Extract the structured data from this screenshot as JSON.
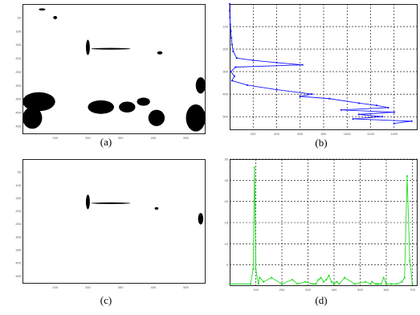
{
  "captions": [
    "(a)",
    "(b)",
    "(c)",
    "(d)"
  ],
  "colors": {
    "blue_series": "#1a1aff",
    "green_series": "#22dd22",
    "mask": "#000000",
    "grid": "#000000"
  },
  "chart_data": [
    {
      "panel": "a",
      "type": "heatmap",
      "description_visible": "binary image",
      "x_ticks": [
        "100",
        "200",
        "300",
        "400",
        "500"
      ],
      "y_ticks": [
        "50",
        "100",
        "150",
        "200",
        "250",
        "300",
        "350",
        "400",
        "450"
      ],
      "xlim": [
        0,
        560
      ],
      "ylim": [
        0,
        480
      ],
      "blobs": [
        {
          "cx": 200,
          "cy": 160,
          "rx": 6,
          "ry": 28
        },
        {
          "cx": 270,
          "cy": 165,
          "rx": 60,
          "ry": 3
        },
        {
          "cx": 420,
          "cy": 180,
          "rx": 8,
          "ry": 6
        },
        {
          "cx": 50,
          "cy": 360,
          "rx": 50,
          "ry": 35
        },
        {
          "cx": 30,
          "cy": 420,
          "rx": 30,
          "ry": 40
        },
        {
          "cx": 240,
          "cy": 380,
          "rx": 40,
          "ry": 25
        },
        {
          "cx": 320,
          "cy": 380,
          "rx": 25,
          "ry": 20
        },
        {
          "cx": 370,
          "cy": 360,
          "rx": 20,
          "ry": 15
        },
        {
          "cx": 410,
          "cy": 420,
          "rx": 25,
          "ry": 30
        },
        {
          "cx": 530,
          "cy": 420,
          "rx": 30,
          "ry": 50
        },
        {
          "cx": 545,
          "cy": 300,
          "rx": 15,
          "ry": 30
        },
        {
          "cx": 100,
          "cy": 50,
          "rx": 6,
          "ry": 6
        },
        {
          "cx": 60,
          "cy": 20,
          "rx": 10,
          "ry": 4
        }
      ]
    },
    {
      "panel": "b",
      "type": "line",
      "x": [
        0,
        0,
        2,
        5,
        10,
        15,
        20,
        30,
        60,
        200,
        400,
        620,
        50,
        10,
        40,
        20,
        150,
        400,
        700,
        600,
        850,
        1100,
        1250,
        1350,
        950,
        1400,
        1100,
        1300,
        1050,
        1550,
        1400
      ],
      "y": [
        0,
        30,
        60,
        90,
        120,
        150,
        180,
        210,
        240,
        250,
        260,
        270,
        280,
        300,
        320,
        340,
        360,
        380,
        400,
        410,
        420,
        440,
        450,
        460,
        470,
        480,
        490,
        500,
        510,
        520,
        530
      ],
      "xlim": [
        0,
        1600
      ],
      "ylim": [
        0,
        560
      ],
      "x_ticks": [
        "200",
        "400",
        "600",
        "800",
        "1000",
        "1200",
        "1400"
      ],
      "y_ticks": [
        "100",
        "200",
        "300",
        "400",
        "500"
      ],
      "grid": true
    },
    {
      "panel": "c",
      "type": "heatmap",
      "description_visible": "binary image",
      "x_ticks": [
        "100",
        "200",
        "300",
        "400",
        "500"
      ],
      "y_ticks": [
        "50",
        "100",
        "150",
        "200",
        "250",
        "300",
        "350",
        "400",
        "450"
      ],
      "xlim": [
        0,
        560
      ],
      "ylim": [
        0,
        480
      ],
      "blobs": [
        {
          "cx": 200,
          "cy": 165,
          "rx": 6,
          "ry": 28
        },
        {
          "cx": 270,
          "cy": 170,
          "rx": 60,
          "ry": 3
        },
        {
          "cx": 410,
          "cy": 190,
          "rx": 6,
          "ry": 5
        },
        {
          "cx": 545,
          "cy": 230,
          "rx": 8,
          "ry": 22
        }
      ]
    },
    {
      "panel": "d",
      "type": "line",
      "x": [
        0,
        80,
        90,
        95,
        100,
        110,
        115,
        130,
        160,
        200,
        240,
        260,
        290,
        320,
        330,
        340,
        350,
        360,
        370,
        380,
        390,
        400,
        410,
        420,
        440,
        480,
        520,
        540,
        545,
        560,
        565,
        570,
        580,
        590,
        600,
        620,
        640,
        660,
        670,
        680,
        690,
        700
      ],
      "y": [
        0.5,
        0.5,
        4,
        28,
        4,
        0.5,
        2,
        1,
        2,
        0.5,
        1.5,
        0.5,
        1,
        0.5,
        0.5,
        1.5,
        2,
        1,
        1.5,
        2.5,
        1,
        0.5,
        1,
        0.5,
        2,
        0.5,
        1,
        0.5,
        1,
        0.5,
        0.5,
        0.5,
        0.5,
        2,
        0.5,
        0.5,
        0.5,
        1,
        2,
        26,
        6,
        0.5
      ],
      "xlim": [
        0,
        720
      ],
      "ylim": [
        0,
        30
      ],
      "x_ticks": [
        "100",
        "200",
        "300",
        "400",
        "500",
        "600",
        "700"
      ],
      "y_ticks": [
        "5",
        "10",
        "15",
        "20",
        "25",
        "30"
      ],
      "grid": true
    }
  ]
}
